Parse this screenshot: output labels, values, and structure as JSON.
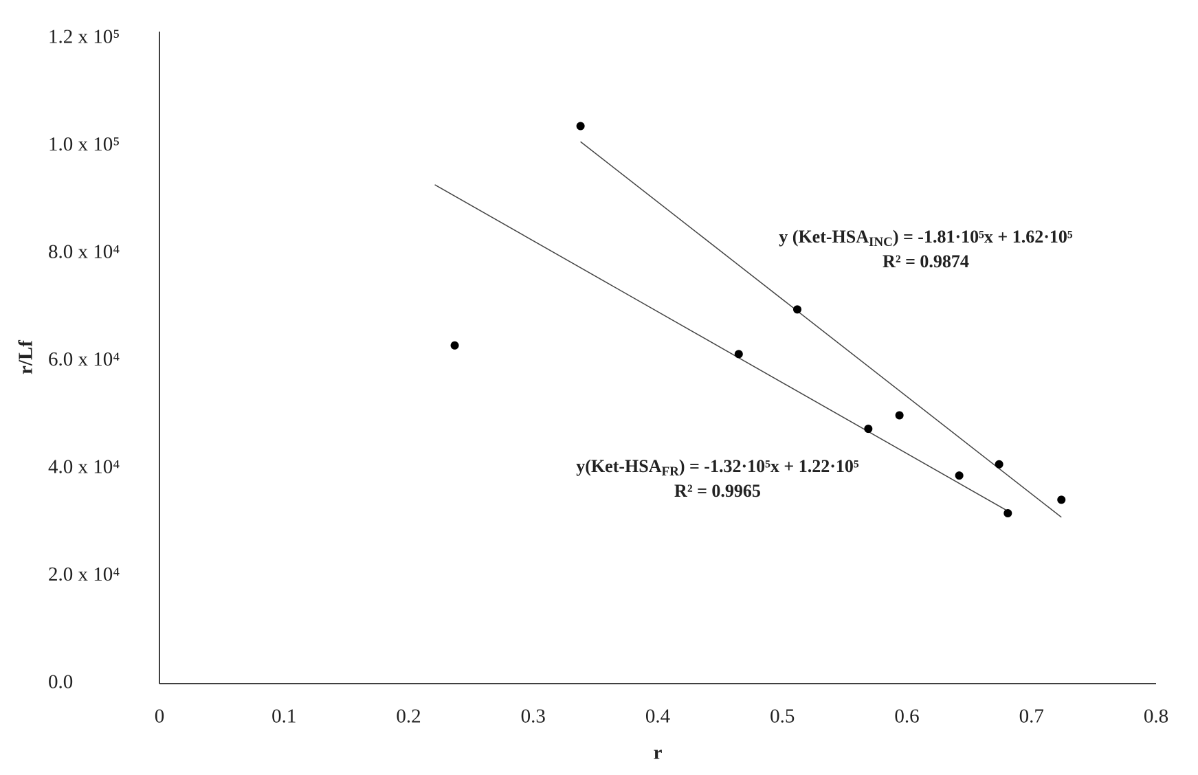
{
  "chart_data": {
    "type": "scatter",
    "x_label": "r",
    "y_label": "r/Lf",
    "x": [
      0.237,
      0.338,
      0.512,
      0.465,
      0.569,
      0.594,
      0.642,
      0.674,
      0.681,
      0.724
    ],
    "values": [
      62900,
      103700,
      69600,
      61300,
      47400,
      49900,
      38700,
      40800,
      31700,
      34200
    ],
    "color": "#000000",
    "xlim": [
      0,
      0.8
    ],
    "xticks": [
      0,
      0.1,
      0.2,
      0.3,
      0.4,
      0.5,
      0.6,
      0.7,
      0.8
    ],
    "ylim": [
      0,
      120000
    ],
    "yticks": [
      {
        "value": 0,
        "label": "0.0"
      },
      {
        "value": 20000,
        "label": "2.0 x 10⁴"
      },
      {
        "value": 40000,
        "label": "4.0 x 10⁴"
      },
      {
        "value": 60000,
        "label": "6.0 x 10⁴"
      },
      {
        "value": 80000,
        "label": "8.0 x 10⁴"
      },
      {
        "value": 100000,
        "label": "1.0 x 10⁵"
      },
      {
        "value": 120000,
        "label": "1.2 x 10⁵"
      }
    ],
    "grid": false,
    "trendlines": [
      {
        "x": [
          0.338,
          0.724
        ],
        "values": [
          100800,
          30950
        ],
        "color": "#444444",
        "equation": {
          "lhs": "y (Ket-HSA",
          "subscript": "INC",
          "rhs": ") = -1.81·10⁵x + 1.62·10⁵"
        },
        "r2": "R² = 0.9874"
      },
      {
        "x": [
          0.221,
          0.681
        ],
        "values": [
          92800,
          32100
        ],
        "color": "#444444",
        "equation": {
          "lhs": "y(Ket-HSA",
          "subscript": "FR",
          "rhs": ") = -1.32·10⁵x + 1.22·10⁵"
        },
        "r2": "R² = 0.9965"
      }
    ]
  }
}
